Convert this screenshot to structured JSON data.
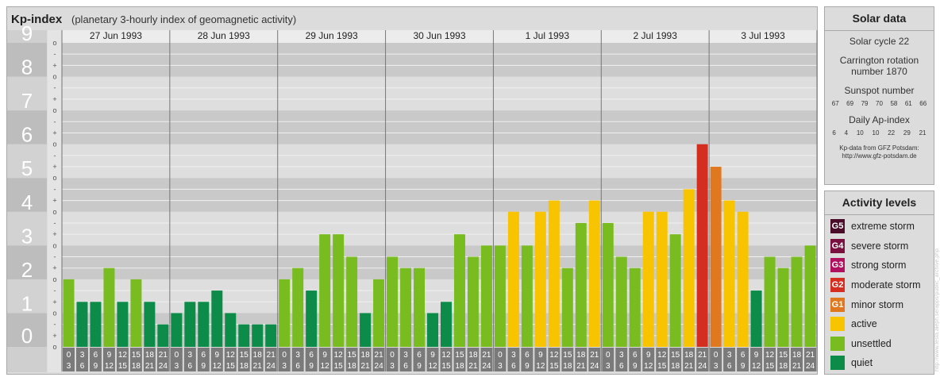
{
  "header": {
    "title": "Kp-index",
    "subtitle": "(planetary 3-hourly index of geomagnetic activity)"
  },
  "chart_data": {
    "type": "bar",
    "title": "Kp-index",
    "subtitle": "(planetary 3-hourly index of geomagnetic activity)",
    "ylim": [
      0,
      9
    ],
    "y_tick_labels": [
      "0",
      "1",
      "2",
      "3",
      "4",
      "5",
      "6",
      "7",
      "8",
      "9"
    ],
    "minor_tick_labels": [
      "o",
      "+",
      "-"
    ],
    "days": [
      "27 Jun 1993",
      "28 Jun 1993",
      "29 Jun 1993",
      "30 Jun 1993",
      "1 Jul 1993",
      "2 Jul 1993",
      "3 Jul 1993"
    ],
    "slot_labels": [
      [
        "0",
        "3"
      ],
      [
        "3",
        "6"
      ],
      [
        "6",
        "9"
      ],
      [
        "9",
        "12"
      ],
      [
        "12",
        "15"
      ],
      [
        "15",
        "18"
      ],
      [
        "18",
        "21"
      ],
      [
        "21",
        "24"
      ]
    ],
    "values": [
      [
        2.0,
        1.333,
        1.333,
        2.333,
        1.333,
        2.0,
        1.333,
        0.667
      ],
      [
        1.0,
        1.333,
        1.333,
        1.667,
        1.0,
        0.667,
        0.667,
        0.667
      ],
      [
        2.0,
        2.333,
        1.667,
        3.333,
        3.333,
        2.667,
        1.0,
        2.0
      ],
      [
        2.667,
        2.333,
        2.333,
        1.0,
        1.333,
        3.333,
        2.667,
        3.0
      ],
      [
        3.0,
        4.0,
        3.0,
        4.0,
        4.333,
        2.333,
        3.667,
        4.333
      ],
      [
        3.667,
        2.667,
        2.333,
        4.0,
        4.0,
        3.333,
        4.667,
        6.0
      ],
      [
        5.333,
        4.333,
        4.0,
        1.667,
        2.667,
        2.333,
        2.667,
        3.0
      ]
    ],
    "grid": true
  },
  "solar": {
    "title": "Solar data",
    "cycle": "Solar cycle 22",
    "carrington_1": "Carrington rotation",
    "carrington_2": "number 1870",
    "sunspot_title": "Sunspot number",
    "sunspot_values": [
      "67",
      "69",
      "79",
      "70",
      "58",
      "61",
      "66"
    ],
    "ap_title": "Daily Ap-index",
    "ap_values": [
      "6",
      "4",
      "10",
      "10",
      "22",
      "29",
      "21"
    ],
    "source_1": "Kp-data from GFZ Potsdam:",
    "source_2": "http://www.gfz-potsdam.de"
  },
  "levels": {
    "title": "Activity levels",
    "items": [
      {
        "badge": "G5",
        "label": "extreme storm",
        "color": "#4a0c28"
      },
      {
        "badge": "G4",
        "label": "severe storm",
        "color": "#7a1040"
      },
      {
        "badge": "G3",
        "label": "strong storm",
        "color": "#b01060"
      },
      {
        "badge": "G2",
        "label": "moderate storm",
        "color": "#d42e20"
      },
      {
        "badge": "G1",
        "label": "minor storm",
        "color": "#e07820"
      },
      {
        "badge": "",
        "label": "active",
        "color": "#f8c400"
      },
      {
        "badge": "",
        "label": "unsettled",
        "color": "#78bc20"
      },
      {
        "badge": "",
        "label": "quiet",
        "color": "#0c8c48"
      }
    ]
  },
  "watermark": "http://www.tesla.aleph.se/apps/public_archive.php",
  "colors": {
    "quiet": "#0c8c48",
    "unsettled": "#78bc20",
    "active": "#f8c400",
    "g1": "#e07820",
    "g2": "#d42e20"
  }
}
